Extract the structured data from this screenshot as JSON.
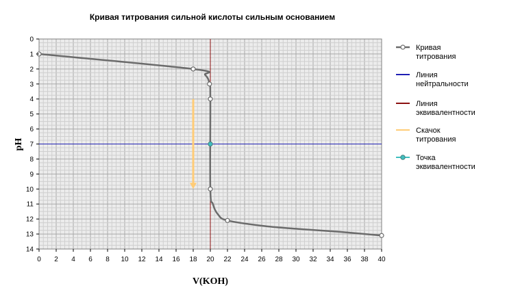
{
  "chart_data": {
    "type": "line",
    "title": "Кривая титрования сильной кислоты сильным основанием",
    "xlabel": "V(KOH)",
    "ylabel": "pH",
    "xlim": [
      0,
      40
    ],
    "ylim": [
      0,
      14
    ],
    "y_inverted": true,
    "grid": true,
    "legend_position": "right",
    "x_ticks": [
      "0",
      "2",
      "4",
      "6",
      "8",
      "10",
      "12",
      "14",
      "16",
      "18",
      "20",
      "22",
      "24",
      "26",
      "28",
      "30",
      "32",
      "34",
      "36",
      "38",
      "40"
    ],
    "y_ticks": [
      "0",
      "1",
      "2",
      "3",
      "4",
      "5",
      "6",
      "7",
      "8",
      "9",
      "10",
      "11",
      "12",
      "13",
      "14"
    ],
    "series": [
      {
        "name": "Кривая титрования",
        "color": "#6b6b6b",
        "marker_color": "#ffffff",
        "markers": [
          {
            "x": 0,
            "y": 1.0
          },
          {
            "x": 18,
            "y": 2.0
          },
          {
            "x": 19.9,
            "y": 3.0
          },
          {
            "x": 20,
            "y": 4.0
          },
          {
            "x": 20,
            "y": 10.0
          },
          {
            "x": 22,
            "y": 12.1
          },
          {
            "x": 40,
            "y": 13.1
          }
        ],
        "curve": [
          {
            "x": 0,
            "y": 1.0
          },
          {
            "x": 18,
            "y": 2.0
          },
          {
            "x": 19.4,
            "y": 2.4
          },
          {
            "x": 19.9,
            "y": 3.0
          },
          {
            "x": 20,
            "y": 4.0
          },
          {
            "x": 20,
            "y": 10.0
          },
          {
            "x": 20.3,
            "y": 11.0
          },
          {
            "x": 20.9,
            "y": 11.7
          },
          {
            "x": 22,
            "y": 12.1
          },
          {
            "x": 26,
            "y": 12.45
          },
          {
            "x": 30,
            "y": 12.65
          },
          {
            "x": 35,
            "y": 12.85
          },
          {
            "x": 40,
            "y": 13.1
          }
        ]
      },
      {
        "name": "Линия нейтральности",
        "color": "#1f1fb4",
        "y_value": 7
      },
      {
        "name": "Линия эквивалентности",
        "color": "#8b1010",
        "x_value": 20
      },
      {
        "name": "Скачок титрования",
        "color": "#ffcc77",
        "x_value": 18,
        "from_y": 4,
        "to_y": 10
      },
      {
        "name": "Точка эквивалентности",
        "color": "#3fbfbf",
        "x": 20,
        "y": 7
      }
    ],
    "legend": [
      {
        "label": "Кривая титрования",
        "color": "#6b6b6b",
        "marker": "open-circle"
      },
      {
        "label": "Линия нейтральности",
        "color": "#1f1fb4",
        "marker": "none"
      },
      {
        "label": "Линия эквивалентности",
        "color": "#8b1010",
        "marker": "none"
      },
      {
        "label": "Скачок титрования",
        "color": "#ffcc77",
        "marker": "none"
      },
      {
        "label": "Точка эквивалентности",
        "color": "#3fbfbf",
        "marker": "filled-circle"
      }
    ]
  }
}
